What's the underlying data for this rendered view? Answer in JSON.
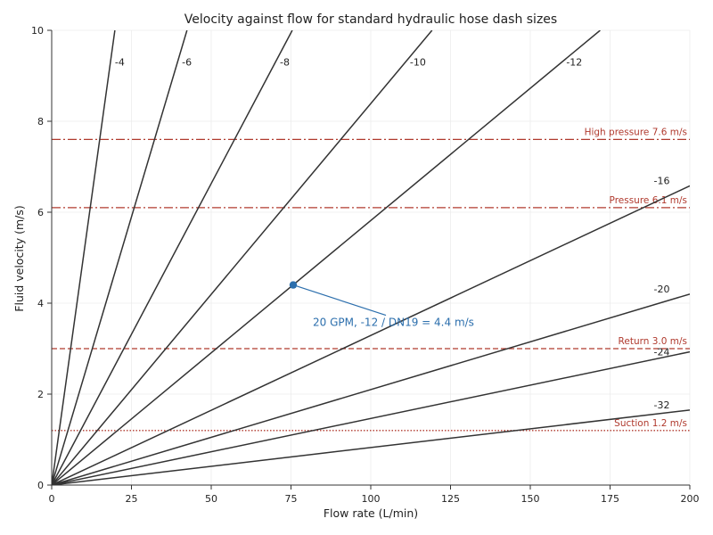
{
  "chart_data": {
    "type": "line",
    "title": "Velocity against flow for standard hydraulic hose dash sizes",
    "xlabel": "Flow rate (L/min)",
    "ylabel": "Fluid velocity (m/s)",
    "xlim": [
      0,
      200
    ],
    "ylim": [
      0,
      10
    ],
    "xticks": [
      0,
      25,
      50,
      75,
      100,
      125,
      150,
      175,
      200
    ],
    "yticks": [
      0,
      2,
      4,
      6,
      8,
      10
    ],
    "grid": true,
    "colors": {
      "series": "#333333",
      "reference": "#b03a2e",
      "annotation": "#2c6fad",
      "grid": "#ececec",
      "axis": "#333333"
    },
    "series": [
      {
        "name": "-4",
        "x": [
          0,
          19.8
        ],
        "y": [
          0,
          10
        ]
      },
      {
        "name": "-6",
        "x": [
          0,
          42.4
        ],
        "y": [
          0,
          10
        ]
      },
      {
        "name": "-8",
        "x": [
          0,
          75.4
        ],
        "y": [
          0,
          10
        ]
      },
      {
        "name": "-10",
        "x": [
          0,
          119.2
        ],
        "y": [
          0,
          10
        ]
      },
      {
        "name": "-12",
        "x": [
          0,
          171.9
        ],
        "y": [
          0,
          10
        ]
      },
      {
        "name": "-16",
        "x": [
          0,
          200
        ],
        "y": [
          0,
          6.58
        ]
      },
      {
        "name": "-20",
        "x": [
          0,
          200
        ],
        "y": [
          0,
          4.2
        ]
      },
      {
        "name": "-24",
        "x": [
          0,
          200
        ],
        "y": [
          0,
          2.93
        ]
      },
      {
        "name": "-32",
        "x": [
          0,
          200
        ],
        "y": [
          0,
          1.65
        ]
      }
    ],
    "reference_lines": [
      {
        "label": "High pressure 7.6 m/s",
        "y": 7.6,
        "style": "dashdot"
      },
      {
        "label": "Pressure 6.1 m/s",
        "y": 6.1,
        "style": "dashdot"
      },
      {
        "label": "Return 3.0 m/s",
        "y": 3.0,
        "style": "dashed"
      },
      {
        "label": "Suction 1.2 m/s",
        "y": 1.2,
        "style": "dotted"
      }
    ],
    "annotation": {
      "text": "20 GPM, -12 / DN19 = 4.4 m/s",
      "x": 75.7,
      "y": 4.4
    }
  }
}
